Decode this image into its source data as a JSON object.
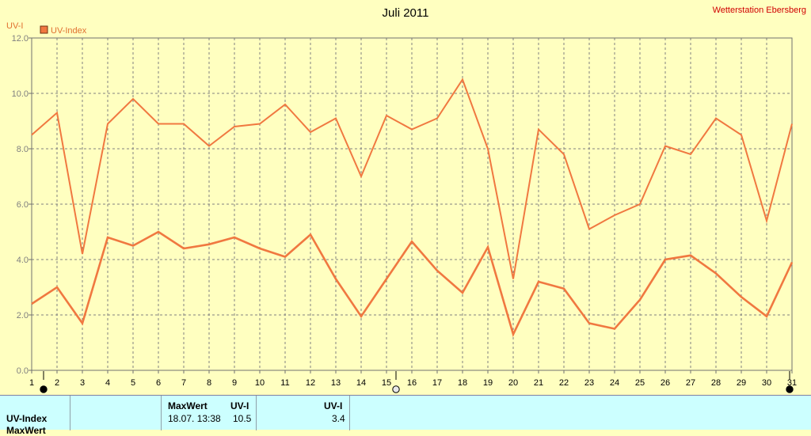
{
  "header": {
    "title": "Juli 2011",
    "station": "Wetterstation Ebersberg",
    "y_unit": "UV-I",
    "legend_label": "UV-Index"
  },
  "colors": {
    "background": "#ffffc0",
    "series": "#f07840",
    "grid": "#808080",
    "station_text": "#d00000",
    "footer_bg": "#ccffff"
  },
  "chart_data": {
    "type": "line",
    "title": "Juli 2011",
    "ylabel": "UV-I",
    "ylim": [
      0,
      12
    ],
    "yticks": [
      0,
      2,
      4,
      6,
      8,
      10,
      12
    ],
    "ytick_labels": [
      "0.0",
      "2.0",
      "4.0",
      "6.0",
      "8.0",
      "10.0",
      "12.0"
    ],
    "xlim": [
      1,
      31
    ],
    "x": [
      1,
      2,
      3,
      4,
      5,
      6,
      7,
      8,
      9,
      10,
      11,
      12,
      13,
      14,
      15,
      16,
      17,
      18,
      19,
      20,
      21,
      22,
      23,
      24,
      25,
      26,
      27,
      28,
      29,
      30,
      31
    ],
    "grid": true,
    "legend": "top-left",
    "series": [
      {
        "name": "UV-Index",
        "values": [
          8.5,
          9.3,
          4.2,
          8.9,
          9.8,
          8.9,
          8.9,
          8.1,
          8.8,
          8.9,
          9.6,
          8.6,
          9.1,
          7.0,
          9.2,
          8.7,
          9.1,
          10.5,
          8.0,
          3.3,
          8.7,
          7.8,
          5.1,
          5.6,
          6.0,
          8.1,
          7.8,
          9.1,
          8.5,
          5.4,
          8.9
        ]
      },
      {
        "name": "UV-Index",
        "values": [
          2.4,
          3.0,
          1.7,
          4.8,
          4.5,
          5.0,
          4.4,
          4.55,
          4.8,
          4.4,
          4.1,
          4.9,
          3.3,
          1.95,
          3.3,
          4.65,
          3.6,
          2.8,
          4.45,
          1.3,
          3.2,
          2.95,
          1.7,
          1.5,
          2.55,
          4.0,
          4.15,
          3.5,
          2.65,
          1.95,
          3.9
        ]
      }
    ]
  },
  "footer": {
    "row_label": "UV-Index",
    "row2_label_partial": "MaxWert",
    "col_maxwert": "MaxWert",
    "col_uvi_1": "UV-I",
    "col_uvi_2": "UV-I",
    "max_datetime": "18.07. 13:38",
    "max_value": "10.5",
    "value_2": "3.4"
  }
}
